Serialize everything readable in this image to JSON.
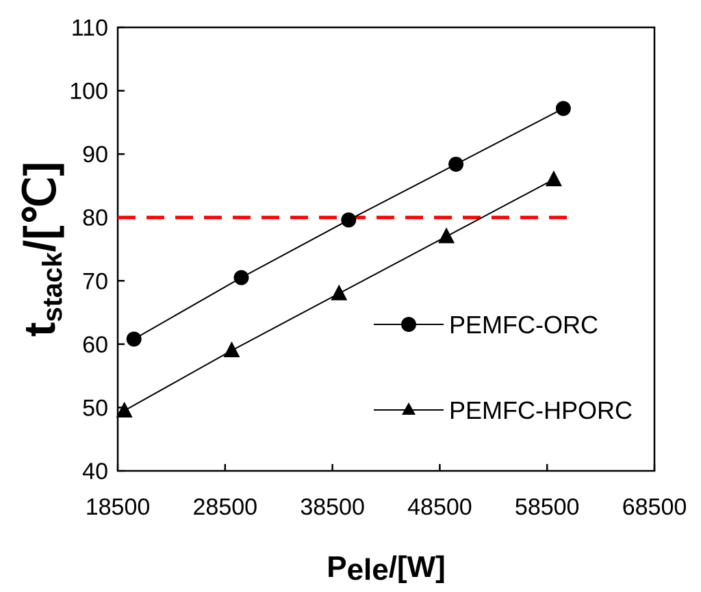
{
  "chart_data": {
    "type": "line",
    "x": [
      19500,
      29500,
      39500,
      49500,
      59500
    ],
    "series": [
      {
        "name": "PEMFC-ORC",
        "marker": "circle",
        "values": [
          60.8,
          70.5,
          79.6,
          88.4,
          97.2
        ]
      },
      {
        "name": "PEMFC-HPORC",
        "marker": "triangle",
        "values": [
          49.5,
          59.0,
          68.0,
          77.0,
          86.0
        ]
      }
    ],
    "reference_line": {
      "y": 80,
      "x_range": [
        18500,
        59500
      ],
      "color": "#ff0000",
      "style": "dashed"
    },
    "xlim": [
      18500,
      68500
    ],
    "ylim": [
      40,
      110
    ],
    "x_ticks": [
      "18500",
      "28500",
      "38500",
      "48500",
      "58500",
      "68500"
    ],
    "y_ticks": [
      "40",
      "50",
      "60",
      "70",
      "80",
      "90",
      "100",
      "110"
    ],
    "ylabel": {
      "main": "t",
      "sub": "stack",
      "unit": "/[℃]"
    },
    "xlabel": {
      "main": "P",
      "sub": "ele",
      "unit": "/[W]"
    },
    "legend_position": "center-right",
    "series_color": "#000000"
  }
}
